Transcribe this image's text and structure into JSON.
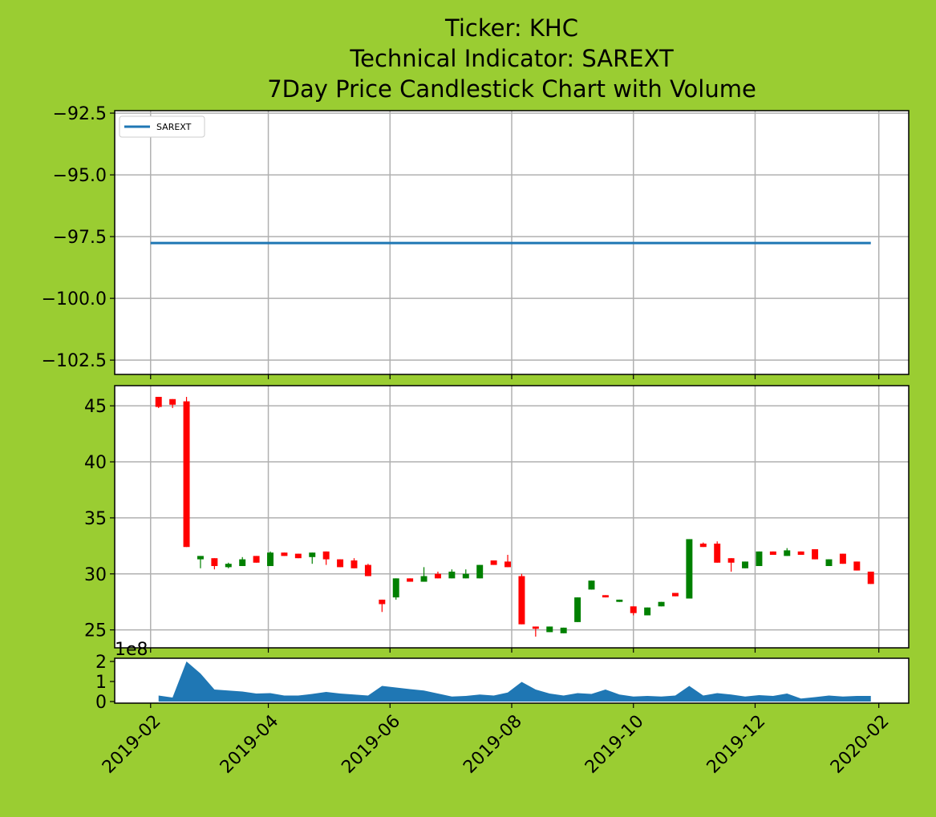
{
  "chart_data": [
    {
      "type": "line",
      "title": [
        "Ticker: KHC",
        "Technical Indicator: SAREXT",
        "7Day Price Candlestick Chart with Volume"
      ],
      "series": [
        {
          "name": "SAREXT",
          "color": "#1f77b4",
          "x": [
            0,
            361
          ],
          "values": [
            -97.76,
            -97.76
          ]
        }
      ],
      "xlim": [
        -18,
        380
      ],
      "ylim": [
        -103.08,
        -92.4
      ],
      "yticks": [
        {
          "value": -102.5,
          "label": "−102.5"
        },
        {
          "value": -100.0,
          "label": "−100.0"
        },
        {
          "value": -97.5,
          "label": "−97.5"
        },
        {
          "value": -95.0,
          "label": "−95.0"
        },
        {
          "value": -92.5,
          "label": "−92.5"
        }
      ],
      "grid": true,
      "legend": "upper left"
    },
    {
      "type": "candlestick",
      "x": [
        4,
        11,
        18,
        25,
        32,
        39,
        46,
        53,
        60,
        67,
        74,
        81,
        88,
        95,
        102,
        109,
        116,
        123,
        130,
        137,
        144,
        151,
        158,
        165,
        172,
        179,
        186,
        193,
        200,
        207,
        214,
        221,
        228,
        235,
        242,
        249,
        256,
        263,
        270,
        277,
        284,
        291,
        298,
        305,
        312,
        319,
        326,
        333,
        340,
        347,
        354,
        361
      ],
      "open": [
        45.8,
        45.6,
        45.4,
        31.3,
        31.4,
        30.6,
        30.7,
        31.6,
        30.7,
        31.9,
        31.8,
        31.5,
        32.0,
        31.3,
        31.2,
        30.8,
        27.7,
        27.9,
        29.6,
        29.3,
        30.0,
        29.6,
        29.6,
        29.6,
        31.2,
        31.1,
        29.8,
        25.3,
        24.8,
        24.7,
        25.7,
        28.6,
        28.1,
        27.5,
        27.1,
        26.3,
        27.1,
        28.3,
        27.8,
        32.7,
        32.7,
        31.4,
        30.5,
        30.7,
        32.0,
        31.6,
        32.0,
        32.2,
        30.7,
        31.8,
        31.1,
        30.2
      ],
      "high": [
        45.8,
        45.6,
        45.8,
        31.6,
        31.4,
        31.0,
        31.5,
        31.6,
        32.0,
        31.9,
        31.8,
        31.9,
        32.0,
        31.3,
        31.4,
        30.9,
        27.7,
        29.6,
        29.6,
        30.6,
        30.2,
        30.4,
        30.4,
        30.8,
        31.2,
        31.7,
        30.0,
        25.3,
        25.3,
        25.2,
        27.9,
        29.4,
        28.1,
        27.7,
        27.1,
        27.0,
        27.5,
        28.3,
        33.1,
        32.8,
        32.9,
        31.4,
        31.1,
        32.0,
        32.0,
        32.3,
        32.0,
        32.2,
        31.3,
        31.8,
        31.1,
        30.2
      ],
      "low": [
        44.8,
        44.8,
        32.4,
        30.5,
        30.4,
        30.5,
        30.7,
        31.0,
        30.7,
        31.6,
        31.4,
        30.9,
        30.8,
        30.6,
        30.5,
        29.8,
        26.6,
        27.7,
        29.3,
        29.3,
        29.6,
        29.6,
        29.6,
        29.6,
        30.8,
        30.6,
        25.5,
        24.4,
        24.8,
        24.7,
        25.7,
        28.6,
        27.9,
        27.5,
        26.3,
        26.3,
        27.1,
        28.0,
        27.8,
        32.4,
        31.0,
        30.2,
        30.5,
        30.7,
        31.7,
        31.6,
        31.7,
        31.3,
        30.7,
        30.9,
        30.3,
        29.1
      ],
      "close": [
        44.9,
        45.1,
        32.4,
        31.6,
        30.7,
        30.9,
        31.3,
        31.0,
        31.9,
        31.6,
        31.4,
        31.9,
        31.3,
        30.6,
        30.5,
        29.8,
        27.3,
        29.6,
        29.3,
        29.8,
        29.6,
        30.2,
        30.0,
        30.8,
        30.8,
        30.6,
        25.5,
        25.1,
        25.3,
        25.2,
        27.9,
        29.4,
        27.9,
        27.7,
        26.5,
        27.0,
        27.5,
        28.0,
        33.1,
        32.4,
        31.0,
        31.0,
        31.1,
        32.0,
        31.7,
        32.1,
        31.7,
        31.3,
        31.3,
        30.9,
        30.3,
        29.1
      ],
      "up_color": "green",
      "down_color": "red",
      "xlim": [
        -18,
        380
      ],
      "ylim": [
        23.4,
        46.8
      ],
      "yticks": [
        25,
        30,
        35,
        40,
        45
      ],
      "grid": true
    },
    {
      "type": "area",
      "offset_label": "1e8",
      "x": [
        4,
        11,
        18,
        25,
        32,
        39,
        46,
        53,
        60,
        67,
        74,
        81,
        88,
        95,
        102,
        109,
        116,
        123,
        130,
        137,
        144,
        151,
        158,
        165,
        172,
        179,
        186,
        193,
        200,
        207,
        214,
        221,
        228,
        235,
        242,
        249,
        256,
        263,
        270,
        277,
        284,
        291,
        298,
        305,
        312,
        319,
        326,
        333,
        340,
        347,
        354,
        361
      ],
      "values": [
        30000000,
        20000000,
        200000000,
        140000000,
        60000000,
        55000000,
        50000000,
        40000000,
        42000000,
        30000000,
        30000000,
        38000000,
        48000000,
        40000000,
        35000000,
        30000000,
        78000000,
        70000000,
        62000000,
        55000000,
        40000000,
        25000000,
        28000000,
        35000000,
        30000000,
        45000000,
        98000000,
        60000000,
        40000000,
        30000000,
        42000000,
        38000000,
        60000000,
        35000000,
        25000000,
        28000000,
        25000000,
        30000000,
        78000000,
        30000000,
        42000000,
        35000000,
        25000000,
        32000000,
        28000000,
        40000000,
        15000000,
        22000000,
        30000000,
        25000000,
        28000000,
        28000000
      ],
      "color": "#1f77b4",
      "xlim": [
        -18,
        380
      ],
      "ylim": [
        -8000000,
        216000000
      ],
      "yticks": [
        0,
        {
          "value": 100000000,
          "label": "1"
        },
        {
          "value": 200000000,
          "label": "2"
        }
      ],
      "xticks": [
        {
          "value": 0,
          "label": "2019-02"
        },
        {
          "value": 59,
          "label": "2019-04"
        },
        {
          "value": 120,
          "label": "2019-06"
        },
        {
          "value": 181,
          "label": "2019-08"
        },
        {
          "value": 242,
          "label": "2019-10"
        },
        {
          "value": 303,
          "label": "2019-12"
        },
        {
          "value": 365,
          "label": "2020-02"
        }
      ],
      "grid": false
    }
  ]
}
